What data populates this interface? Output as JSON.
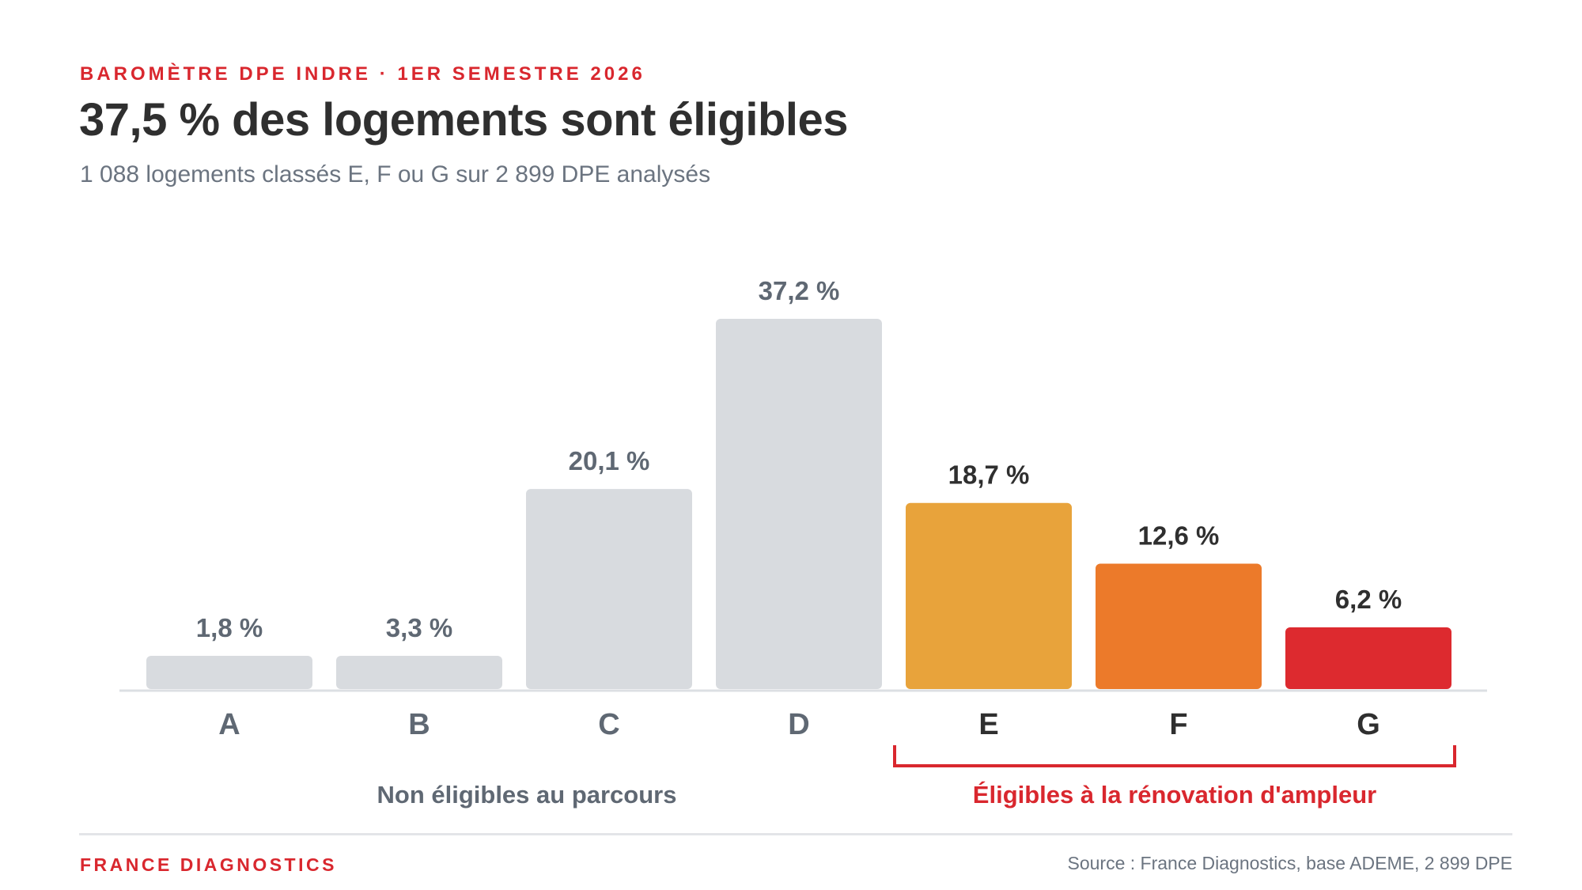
{
  "header": {
    "eyebrow": "BAROMÈTRE DPE INDRE · 1ER SEMESTRE 2026",
    "title": "37,5 % des logements sont éligibles",
    "subtitle": "1 088 logements classés E, F ou G sur 2 899 DPE analysés"
  },
  "chart_data": {
    "type": "bar",
    "categories": [
      "A",
      "B",
      "C",
      "D",
      "E",
      "F",
      "G"
    ],
    "values": [
      1.8,
      3.3,
      20.1,
      37.2,
      18.7,
      12.6,
      6.2
    ],
    "value_labels": [
      "1,8 %",
      "3,3 %",
      "20,1 %",
      "37,2 %",
      "18,7 %",
      "12,6 %",
      "6,2 %"
    ],
    "colors": [
      "#d8dbdf",
      "#d8dbdf",
      "#d8dbdf",
      "#d8dbdf",
      "#e8a33b",
      "#ec7a2a",
      "#dd2a2f"
    ],
    "group_labels": {
      "non_eligible": "Non éligibles au parcours",
      "eligible": "Éligibles à la rénovation d'ampleur"
    },
    "eligible_categories": [
      "E",
      "F",
      "G"
    ],
    "ylim": [
      0,
      37.2
    ]
  },
  "colors": {
    "accent": "#d9272e",
    "title": "#2f2f2f",
    "muted": "#6b7480",
    "bar_neutral": "#d8dbdf"
  },
  "footer": {
    "brand": "FRANCE DIAGNOSTICS",
    "source": "Source : France Diagnostics, base ADEME, 2 899 DPE"
  }
}
